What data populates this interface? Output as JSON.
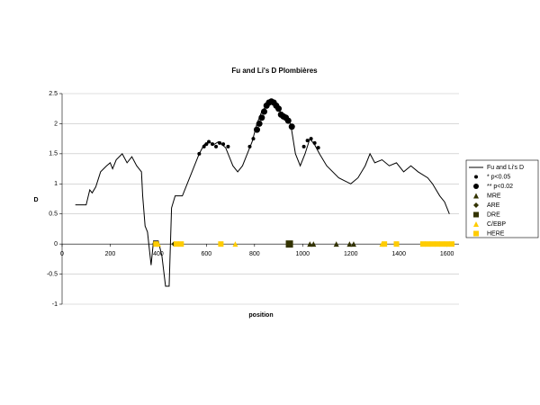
{
  "chart_data": {
    "type": "line",
    "title": "Fu and Li's D Plombières",
    "x_label": "position",
    "y_label": "D",
    "xlim": [
      0,
      1650
    ],
    "xticks": [
      0,
      200,
      400,
      600,
      800,
      1000,
      1200,
      1400,
      1600
    ],
    "ylim": [
      -1,
      2.5
    ],
    "yticks": [
      2.5,
      2,
      1.5,
      1,
      0.5,
      0,
      -0.5,
      -1
    ],
    "grid": true,
    "legend": "right",
    "series": [
      {
        "name": "Fu and Li's D",
        "color": "#000000",
        "marker": "line",
        "x": [
          55,
          100,
          115,
          125,
          140,
          160,
          185,
          200,
          210,
          225,
          250,
          270,
          290,
          310,
          330,
          335,
          345,
          355,
          370,
          380,
          400,
          415,
          430,
          445,
          455,
          470,
          500,
          520,
          540,
          570,
          590,
          610,
          630,
          650,
          680,
          710,
          730,
          750,
          770,
          790,
          810,
          830,
          860,
          880,
          900,
          920,
          950,
          970,
          990,
          1010,
          1030,
          1050,
          1070,
          1100,
          1150,
          1200,
          1230,
          1260,
          1280,
          1300,
          1330,
          1360,
          1390,
          1420,
          1450,
          1480,
          1520,
          1540,
          1570,
          1590,
          1610
        ],
        "values": [
          0.65,
          0.65,
          0.9,
          0.85,
          0.95,
          1.2,
          1.3,
          1.35,
          1.25,
          1.4,
          1.5,
          1.35,
          1.45,
          1.3,
          1.2,
          0.8,
          0.3,
          0.2,
          -0.35,
          0.05,
          0.05,
          -0.2,
          -0.7,
          -0.7,
          0.6,
          0.8,
          0.8,
          1.0,
          1.2,
          1.5,
          1.65,
          1.7,
          1.65,
          1.7,
          1.6,
          1.3,
          1.2,
          1.3,
          1.5,
          1.7,
          2.0,
          2.2,
          2.35,
          2.35,
          2.25,
          2.1,
          2.0,
          1.5,
          1.3,
          1.5,
          1.75,
          1.65,
          1.5,
          1.3,
          1.1,
          1.0,
          1.1,
          1.3,
          1.5,
          1.35,
          1.4,
          1.3,
          1.35,
          1.2,
          1.3,
          1.2,
          1.1,
          1.0,
          0.8,
          0.7,
          0.5
        ]
      },
      {
        "name": "* p<0.05",
        "color": "#000000",
        "marker": "circle",
        "size": 2,
        "x": [
          570,
          590,
          600,
          610,
          625,
          640,
          655,
          670,
          690,
          780,
          795,
          1005,
          1020,
          1035,
          1050,
          1065
        ],
        "values": [
          1.5,
          1.62,
          1.66,
          1.7,
          1.66,
          1.62,
          1.68,
          1.66,
          1.62,
          1.62,
          1.75,
          1.62,
          1.72,
          1.75,
          1.68,
          1.6
        ]
      },
      {
        "name": "** p<0.02",
        "color": "#000000",
        "marker": "circle",
        "size": 3.5,
        "x": [
          810,
          820,
          830,
          840,
          850,
          860,
          870,
          880,
          890,
          900,
          910,
          920,
          930,
          940,
          955
        ],
        "values": [
          1.9,
          2.0,
          2.1,
          2.2,
          2.3,
          2.35,
          2.37,
          2.35,
          2.3,
          2.25,
          2.15,
          2.12,
          2.1,
          2.05,
          1.95
        ]
      },
      {
        "name": "MRE",
        "color": "#333300",
        "marker": "triangle",
        "size": 3,
        "x": [
          1030,
          1045,
          1140,
          1195,
          1212
        ],
        "values": [
          0,
          0,
          0,
          0,
          0
        ]
      },
      {
        "name": "ARE",
        "color": "#333300",
        "marker": "diamond",
        "size": 3,
        "x": [
          385,
          465
        ],
        "values": [
          0,
          0
        ]
      },
      {
        "name": "DRE",
        "color": "#333300",
        "marker": "square",
        "size": 4,
        "x": [
          945
        ],
        "values": [
          0
        ]
      },
      {
        "name": "C/EBP",
        "color": "#ffcc00",
        "marker": "triangle",
        "size": 3,
        "x": [
          400,
          720,
          1330
        ],
        "values": [
          0,
          0,
          0
        ]
      },
      {
        "name": "HERE",
        "color": "#ffcc00",
        "marker": "square",
        "size": 3,
        "x": [
          390,
          475,
          495,
          660,
          1340,
          1390,
          1500,
          1520,
          1540,
          1560,
          1580,
          1600,
          1620
        ],
        "values": [
          0,
          0,
          0,
          0,
          0,
          0,
          0,
          0,
          0,
          0,
          0,
          0,
          0
        ]
      }
    ]
  }
}
